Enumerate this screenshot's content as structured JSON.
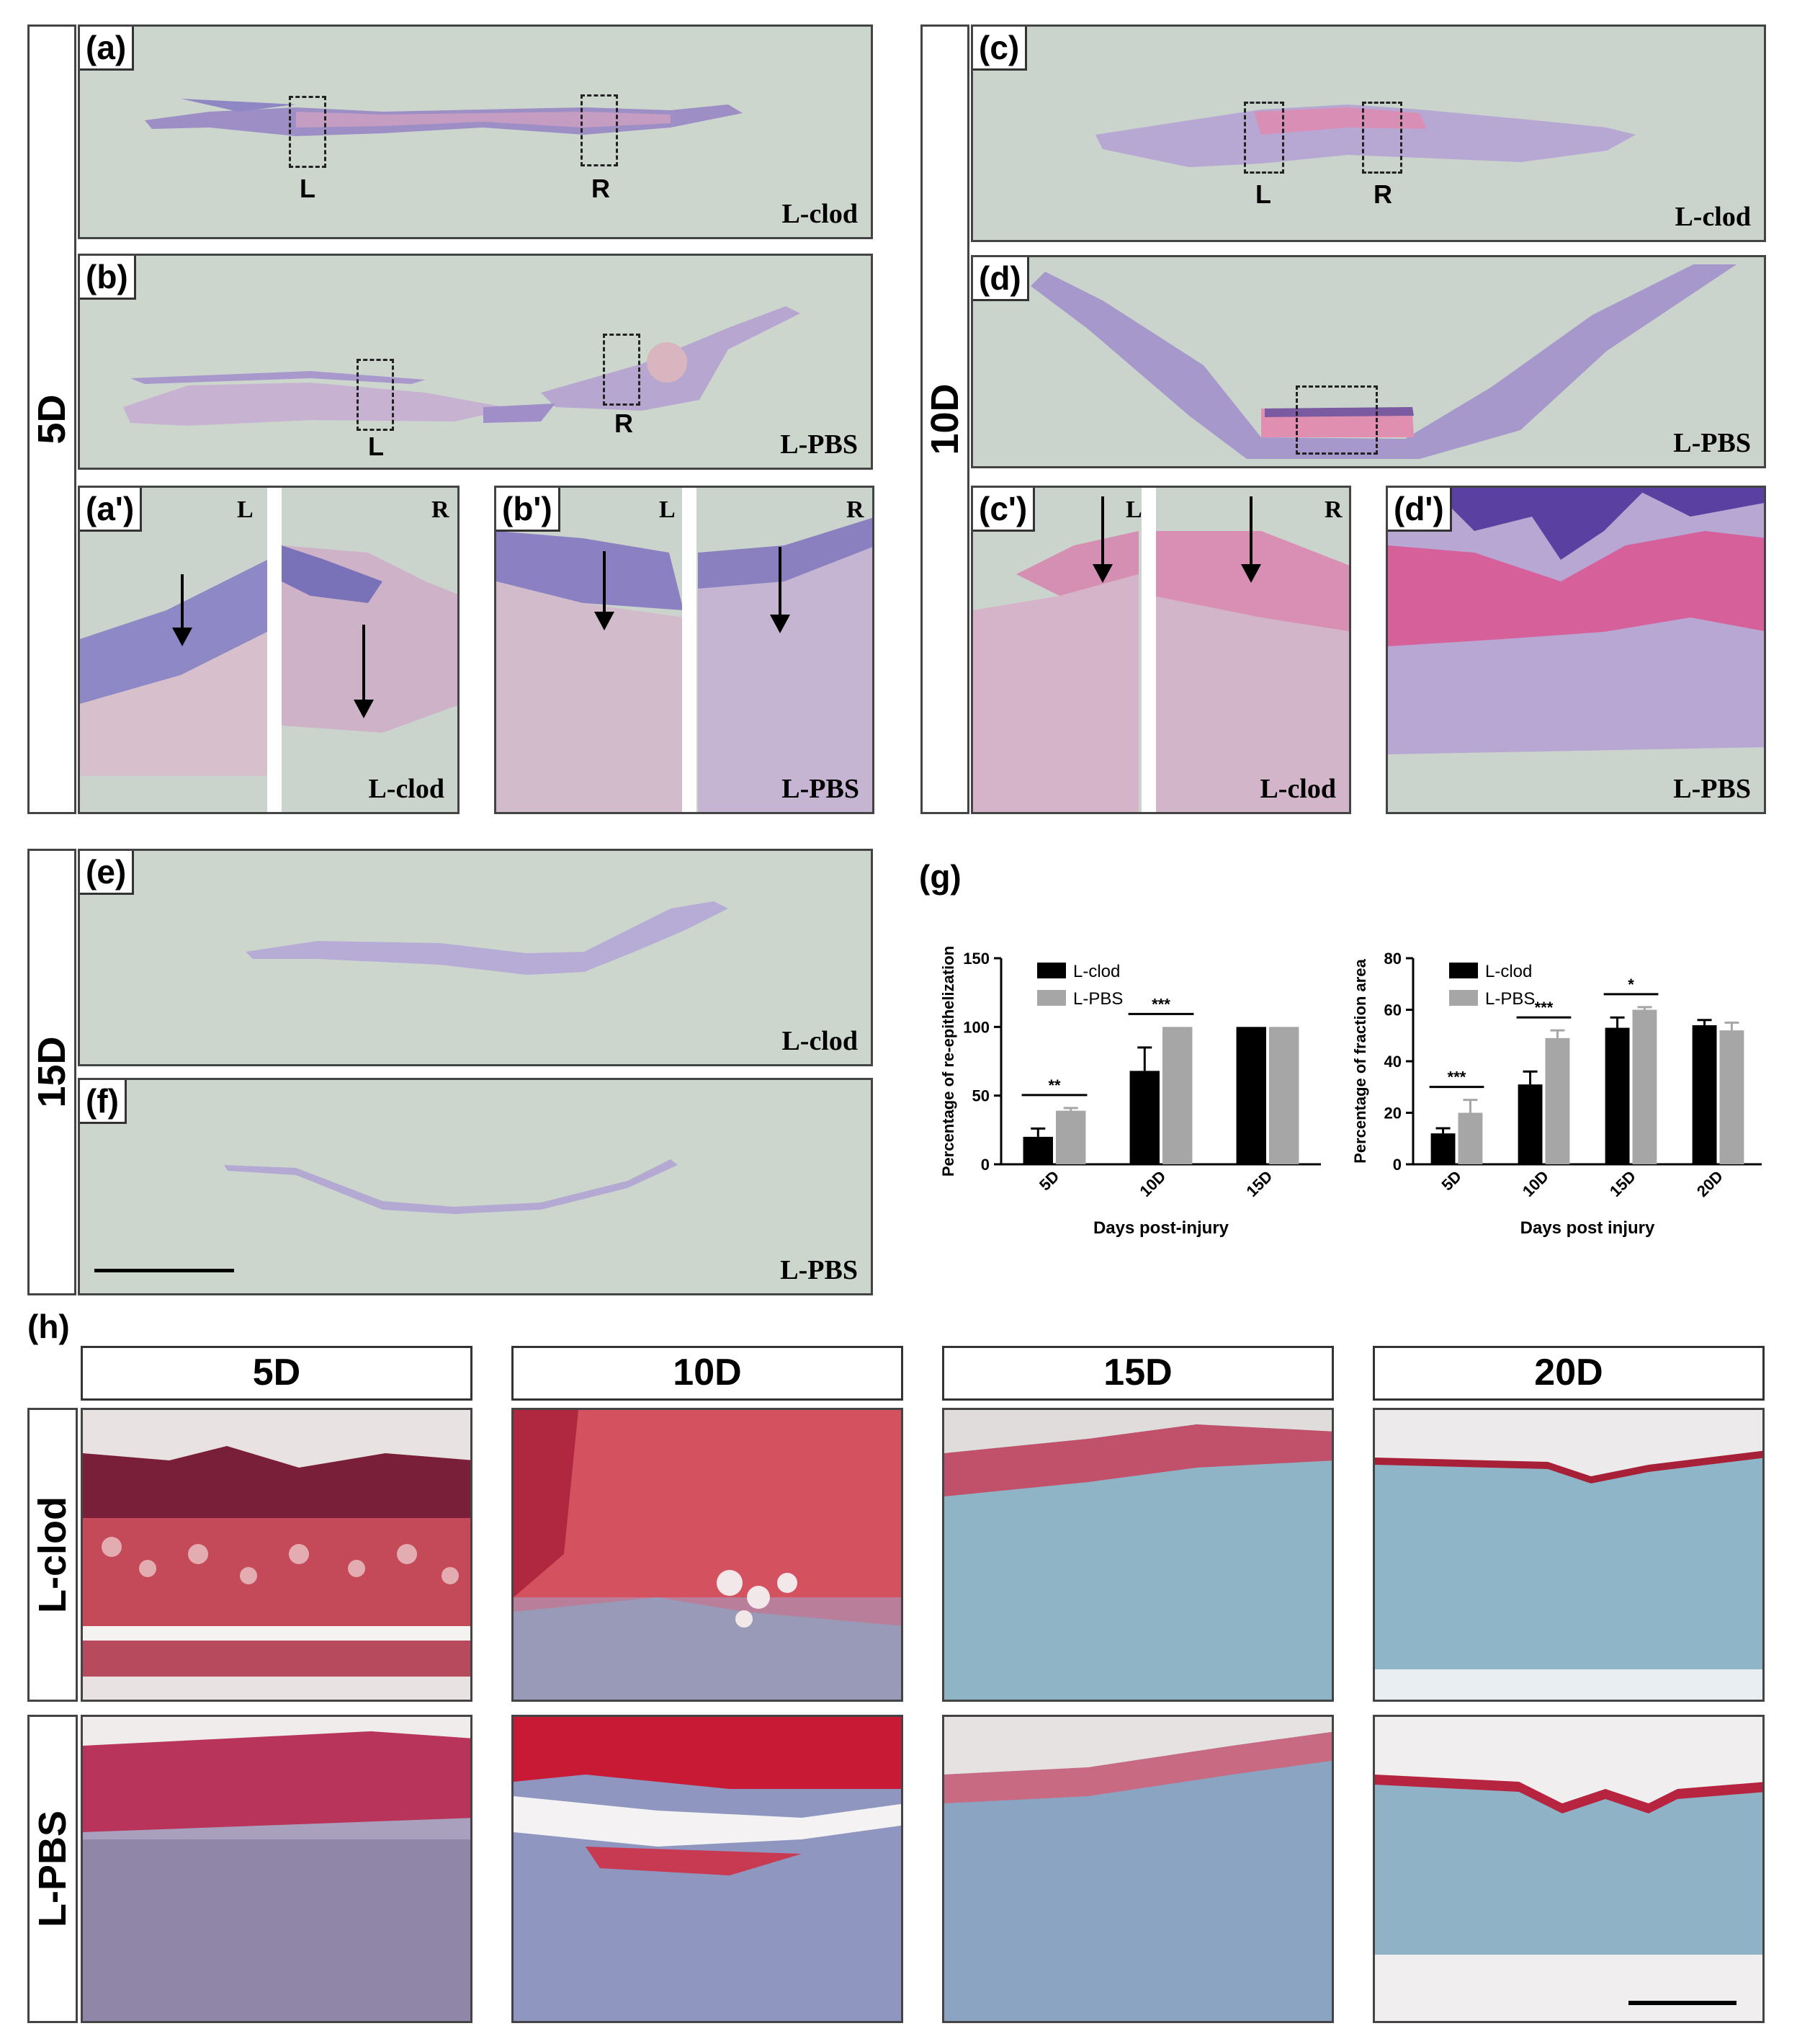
{
  "groups": {
    "day5": "5D",
    "day10": "10D",
    "day15": "15D"
  },
  "panels": {
    "a": {
      "label": "(a)",
      "condition": "L-clod",
      "box_left": "L",
      "box_right": "R"
    },
    "b": {
      "label": "(b)",
      "condition": "L-PBS",
      "box_left": "L",
      "box_right": "R"
    },
    "c": {
      "label": "(c)",
      "condition": "L-clod",
      "box_left": "L",
      "box_right": "R"
    },
    "d": {
      "label": "(d)",
      "condition": "L-PBS"
    },
    "a2": {
      "label": "(a')",
      "condition": "L-clod",
      "left": "L",
      "right": "R"
    },
    "b2": {
      "label": "(b')",
      "condition": "L-PBS",
      "left": "L",
      "right": "R"
    },
    "c2": {
      "label": "(c')",
      "condition": "L-clod",
      "left": "L",
      "right": "R"
    },
    "d2": {
      "label": "(d')",
      "condition": "L-PBS"
    },
    "e": {
      "label": "(e)",
      "condition": "L-clod"
    },
    "f": {
      "label": "(f)",
      "condition": "L-PBS"
    },
    "g": {
      "label": "(g)"
    },
    "h": {
      "label": "(h)"
    }
  },
  "panel_h": {
    "columns": [
      "5D",
      "10D",
      "15D",
      "20D"
    ],
    "rows": [
      "L-clod",
      "L-PBS"
    ]
  },
  "colors": {
    "he_background": "#cfd8cf",
    "tissue_purple": "#8a80c0",
    "tissue_pink": "#d78fb0",
    "trichrome_blue": "#8fb6c9",
    "trichrome_red": "#c8344f",
    "l_clod": "#000000",
    "l_pbs": "#a6a6a6"
  },
  "chart_data": [
    {
      "type": "bar",
      "categories": [
        "5D",
        "10D",
        "15D"
      ],
      "series": [
        {
          "name": "L-clod",
          "values": [
            20,
            68,
            100
          ],
          "errors": [
            6,
            17,
            0
          ]
        },
        {
          "name": "L-PBS",
          "values": [
            39,
            100,
            100
          ],
          "errors": [
            2,
            0,
            0
          ]
        }
      ],
      "xlabel": "Days post-injury",
      "ylabel": "Percentage of re-epithelization",
      "ylim": [
        0,
        150
      ],
      "yticks": [
        0,
        50,
        100,
        150
      ],
      "significance": [
        "**",
        "***",
        ""
      ],
      "legend": "top-left"
    },
    {
      "type": "bar",
      "categories": [
        "5D",
        "10D",
        "15D",
        "20D"
      ],
      "series": [
        {
          "name": "L-clod",
          "values": [
            12,
            31,
            53,
            54
          ],
          "errors": [
            2,
            5,
            4,
            2
          ]
        },
        {
          "name": "L-PBS",
          "values": [
            20,
            49,
            60,
            52
          ],
          "errors": [
            5,
            3,
            1,
            3
          ]
        }
      ],
      "xlabel": "Days post injury",
      "ylabel": "Percentage of fraction area",
      "ylim": [
        0,
        80
      ],
      "yticks": [
        0,
        20,
        40,
        60,
        80
      ],
      "significance": [
        "***",
        "***",
        "*",
        ""
      ],
      "legend": "top-left"
    }
  ]
}
